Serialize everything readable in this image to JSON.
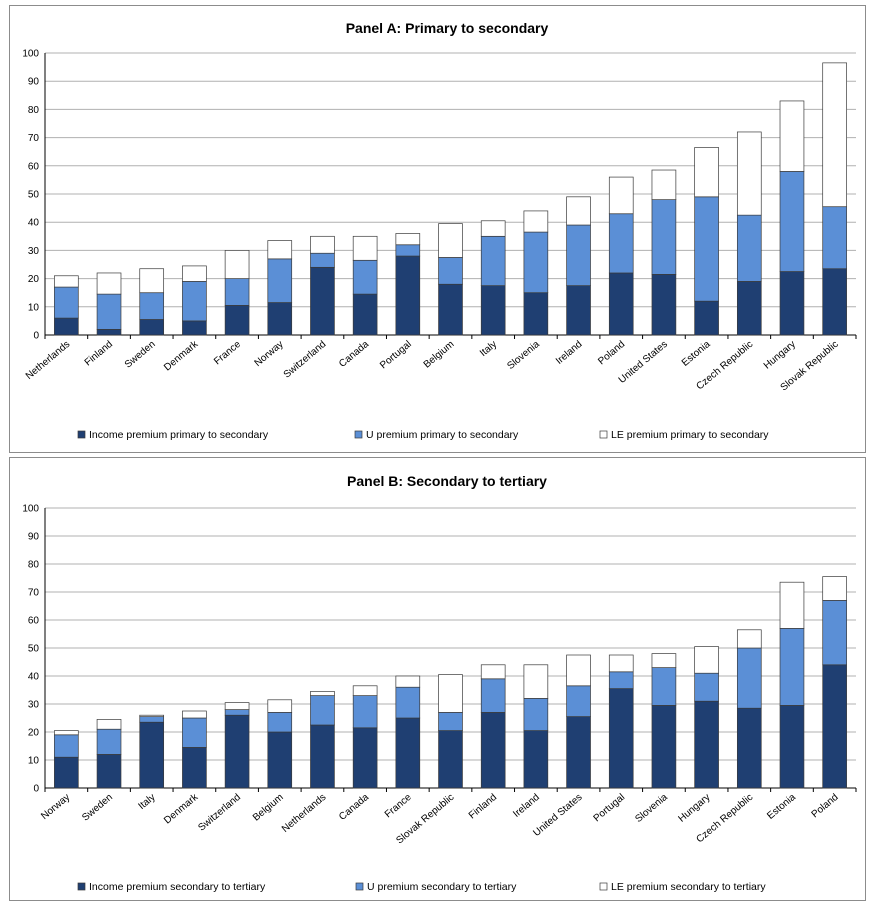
{
  "colors": {
    "income": "#1f3f72",
    "u": "#5b8fd6",
    "le": "#ffffff",
    "grid": "#b0b0b0",
    "axis": "#000000"
  },
  "chart_data": [
    {
      "type": "bar",
      "stacked": true,
      "title": "Panel A: Primary to secondary",
      "ylim": [
        0,
        100
      ],
      "yticks": [
        0,
        10,
        20,
        30,
        40,
        50,
        60,
        70,
        80,
        90,
        100
      ],
      "grid": true,
      "legend": "bottom",
      "categories": [
        "Netherlands",
        "Finland",
        "Sweden",
        "Denmark",
        "France",
        "Norway",
        "Switzerland",
        "Canada",
        "Portugal",
        "Belgium",
        "Italy",
        "Slovenia",
        "Ireland",
        "Poland",
        "United States",
        "Estonia",
        "Czech Republic",
        "Hungary",
        "Slovak Republic"
      ],
      "series": [
        {
          "name": "Income premium primary to secondary",
          "color_key": "income",
          "values": [
            6,
            2,
            5.5,
            5,
            10.5,
            11.5,
            24,
            14.5,
            28,
            18,
            17.5,
            15,
            17.5,
            22,
            21.5,
            12,
            19,
            22.5,
            23.5
          ]
        },
        {
          "name": "U premium primary to secondary",
          "color_key": "u",
          "values": [
            11,
            12.5,
            9.5,
            14,
            9.5,
            15.5,
            5,
            12,
            4,
            9.5,
            17.5,
            21.5,
            21.5,
            21,
            26.5,
            37,
            23.5,
            35.5,
            22
          ]
        },
        {
          "name": "LE premium primary to secondary",
          "color_key": "le",
          "values": [
            4,
            7.5,
            8.5,
            5.5,
            10,
            6.5,
            6,
            8.5,
            4,
            12,
            5.5,
            7.5,
            10,
            13,
            10.5,
            17.5,
            29.5,
            25,
            51
          ]
        }
      ]
    },
    {
      "type": "bar",
      "stacked": true,
      "title": "Panel B: Secondary to tertiary",
      "ylim": [
        0,
        100
      ],
      "yticks": [
        0,
        10,
        20,
        30,
        40,
        50,
        60,
        70,
        80,
        90,
        100
      ],
      "grid": true,
      "legend": "bottom",
      "categories": [
        "Norway",
        "Sweden",
        "Italy",
        "Denmark",
        "Switzerland",
        "Belgium",
        "Netherlands",
        "Canada",
        "France",
        "Slovak Republic",
        "Finland",
        "Ireland",
        "United States",
        "Portugal",
        "Slovenia",
        "Hungary",
        "Czech Republic",
        "Estonia",
        "Poland"
      ],
      "series": [
        {
          "name": "Income premium secondary to tertiary",
          "color_key": "income",
          "values": [
            11,
            12,
            23.5,
            14.5,
            26,
            20,
            22.5,
            21.5,
            25,
            20.5,
            27,
            20.5,
            25.5,
            35.5,
            29.5,
            31,
            28.5,
            29.5,
            44
          ]
        },
        {
          "name": "U premium secondary to tertiary",
          "color_key": "u",
          "values": [
            8,
            9,
            2,
            10.5,
            2,
            7,
            10.5,
            11.5,
            11,
            6.5,
            12,
            11.5,
            11,
            6,
            13.5,
            10,
            21.5,
            27.5,
            23
          ]
        },
        {
          "name": "LE premium secondary to tertiary",
          "color_key": "le",
          "values": [
            1.5,
            3.5,
            0.5,
            2.5,
            2.5,
            4.5,
            1.5,
            3.5,
            4,
            13.5,
            5,
            12,
            11,
            6,
            5,
            9.5,
            6.5,
            16.5,
            8.5
          ]
        }
      ]
    }
  ]
}
